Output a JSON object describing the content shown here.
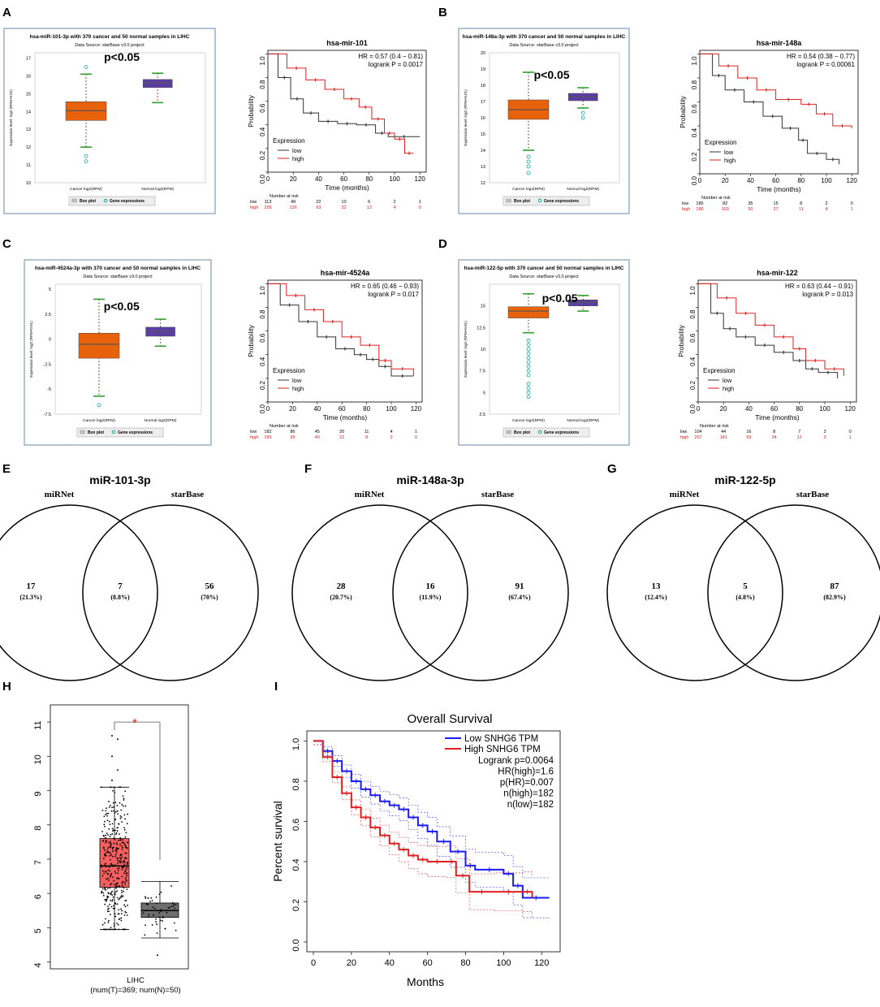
{
  "panel_labels": [
    "A",
    "B",
    "C",
    "D",
    "E",
    "F",
    "G",
    "H",
    "I"
  ],
  "colors": {
    "cancer_box": "#e8620c",
    "normal_box": "#5a3da6",
    "frame": "#9bb0c8",
    "km_low": "#333333",
    "km_high": "#dd2222",
    "venn": "#000000",
    "gepia_tumor": "#f45f5f",
    "gepia_normal": "#6e6e6e",
    "gepia_star": "#e31a1c",
    "os_low": "#1a1aff",
    "os_high": "#e02020",
    "legend_box": "#bdbdbd",
    "gene_expr": "#1aa3a3",
    "whisker": "#2e9e2e"
  },
  "chart_data": [
    {
      "panel": "A",
      "type": "box",
      "title": "hsa-miR-101-3p with 370 cancer and 50 normal samples in LIHC",
      "subtitle": "Data Source: starBase v3.0 project",
      "ylabel": "Expression level: log2 (RPM+0.01)",
      "yticks": [
        10,
        11,
        12,
        13,
        14,
        15,
        16,
        17
      ],
      "ylim": [
        10,
        17.3
      ],
      "categories": [
        "Cancer log2(RPM)",
        "Normal log2(RPM)"
      ],
      "cancer": {
        "wlo": 12.0,
        "q1": 13.5,
        "med": 14.05,
        "q3": 14.55,
        "whi": 16.1,
        "outliers": [
          11.2,
          11.5,
          16.5
        ]
      },
      "normal": {
        "wlo": 14.5,
        "q1": 15.35,
        "med": 15.6,
        "q3": 15.8,
        "whi": 16.15,
        "outliers": []
      },
      "annotation": "p<0.05",
      "legend": [
        "Box plot",
        "Gene expressions"
      ]
    },
    {
      "panel": "A",
      "type": "km",
      "title": "hsa-mir-101",
      "hr": "HR = 0.57 (0.4 − 0.81)",
      "logrank": "logrank P = 0.0017",
      "xlabel": "Time (months)",
      "ylabel": "Probability",
      "xticks": [
        0,
        20,
        40,
        60,
        80,
        100,
        120
      ],
      "yticks": [
        0.0,
        0.2,
        0.4,
        0.6,
        0.8,
        1.0
      ],
      "xlim": [
        0,
        125
      ],
      "legend_title": "Expression",
      "legend": [
        "low",
        "high"
      ],
      "risk_title": "Number at risk",
      "risk": {
        "low": [
          "113",
          "49",
          "22",
          "10",
          "6",
          "2",
          "1"
        ],
        "high": [
          "258",
          "136",
          "63",
          "32",
          "13",
          "4",
          "0"
        ]
      },
      "low": [
        [
          0,
          1.0
        ],
        [
          8,
          0.8
        ],
        [
          18,
          0.62
        ],
        [
          28,
          0.5
        ],
        [
          40,
          0.43
        ],
        [
          55,
          0.41
        ],
        [
          70,
          0.4
        ],
        [
          85,
          0.33
        ],
        [
          95,
          0.3
        ],
        [
          120,
          0.3
        ]
      ],
      "high": [
        [
          0,
          1.0
        ],
        [
          15,
          0.88
        ],
        [
          30,
          0.78
        ],
        [
          45,
          0.7
        ],
        [
          60,
          0.62
        ],
        [
          72,
          0.55
        ],
        [
          82,
          0.45
        ],
        [
          92,
          0.33
        ],
        [
          100,
          0.28
        ],
        [
          108,
          0.16
        ],
        [
          115,
          0.16
        ]
      ]
    },
    {
      "panel": "B",
      "type": "box",
      "title": "hsa-miR-148a-3p with 370 cancer and 50 normal samples in LIHC",
      "subtitle": "Data Source: starBase v3.0 project",
      "ylabel": "Expression level: log2 (RPM+0.01)",
      "yticks": [
        12,
        13,
        14,
        15,
        16,
        17,
        18,
        19,
        20
      ],
      "ylim": [
        12,
        20
      ],
      "categories": [
        "Cancer log2(RPM)",
        "Normal log2(RPM)"
      ],
      "cancer": {
        "wlo": 14.0,
        "q1": 15.9,
        "med": 16.5,
        "q3": 17.1,
        "whi": 18.8,
        "outliers": [
          12.6,
          13.0,
          13.3,
          13.6
        ]
      },
      "normal": {
        "wlo": 16.6,
        "q1": 17.05,
        "med": 17.3,
        "q3": 17.5,
        "whi": 17.85,
        "outliers": [
          16.0,
          16.3
        ]
      },
      "annotation": "p<0.05",
      "legend": [
        "Box plot",
        "Gene expressions"
      ]
    },
    {
      "panel": "B",
      "type": "km",
      "title": "hsa-mir-148a",
      "hr": "HR = 0.54 (0.38 − 0.77)",
      "logrank": "logrank P = 0.00061",
      "xlabel": "Time (months)",
      "ylabel": "Probability",
      "xticks": [
        0,
        20,
        40,
        60,
        80,
        100,
        120
      ],
      "yticks": [
        0.0,
        0.2,
        0.4,
        0.6,
        0.8,
        1.0
      ],
      "xlim": [
        0,
        125
      ],
      "legend_title": "Expression",
      "legend": [
        "low",
        "high"
      ],
      "risk_title": "Number at risk",
      "risk": {
        "low": [
          "185",
          "82",
          "35",
          "15",
          "8",
          "2",
          "0"
        ],
        "high": [
          "186",
          "103",
          "50",
          "27",
          "11",
          "4",
          "1"
        ]
      },
      "low": [
        [
          0,
          1.0
        ],
        [
          10,
          0.82
        ],
        [
          20,
          0.7
        ],
        [
          35,
          0.6
        ],
        [
          50,
          0.48
        ],
        [
          65,
          0.38
        ],
        [
          78,
          0.28
        ],
        [
          85,
          0.17
        ],
        [
          100,
          0.12
        ],
        [
          110,
          0.08
        ]
      ],
      "high": [
        [
          0,
          1.0
        ],
        [
          15,
          0.9
        ],
        [
          30,
          0.8
        ],
        [
          45,
          0.7
        ],
        [
          60,
          0.62
        ],
        [
          80,
          0.58
        ],
        [
          92,
          0.5
        ],
        [
          105,
          0.4
        ],
        [
          120,
          0.38
        ]
      ]
    },
    {
      "panel": "C",
      "type": "box",
      "title": "hsa-miR-4524a-3p with 370 cancer and 50 normal samples in LIHC",
      "subtitle": "Data Source: starBase v3.0 project",
      "ylabel": "Expression level: log2 (RPM+0.01)",
      "yticks": [
        -7.5,
        -5,
        -2.5,
        0,
        2.5,
        5
      ],
      "ylim": [
        -7.5,
        5.5
      ],
      "categories": [
        "Cancer log2(RPM)",
        "Normal log2(RPM)"
      ],
      "cancer": {
        "wlo": -5.7,
        "q1": -1.9,
        "med": -0.5,
        "q3": 0.6,
        "whi": 4.0,
        "outliers": [
          -6.6
        ]
      },
      "normal": {
        "wlo": -0.7,
        "q1": 0.3,
        "med": 0.8,
        "q3": 1.2,
        "whi": 2.0,
        "outliers": []
      },
      "annotation": "p<0.05",
      "legend": [
        "Box plot",
        "Gene expressions"
      ]
    },
    {
      "panel": "C",
      "type": "km",
      "title": "hsa-mir-4524a",
      "hr": "HR = 0.65 (0.46 − 0.93)",
      "logrank": "logrank P = 0.017",
      "xlabel": "Time (months)",
      "ylabel": "Probability",
      "xticks": [
        0,
        20,
        40,
        60,
        80,
        100,
        120
      ],
      "yticks": [
        0.0,
        0.2,
        0.4,
        0.6,
        0.8,
        1.0
      ],
      "xlim": [
        0,
        125
      ],
      "legend_title": "Expression",
      "legend": [
        "low",
        "high"
      ],
      "risk_title": "Number at risk",
      "risk": {
        "low": [
          "182",
          "86",
          "45",
          "20",
          "11",
          "4",
          "1"
        ],
        "high": [
          "189",
          "99",
          "40",
          "22",
          "8",
          "2",
          "0"
        ]
      },
      "low": [
        [
          0,
          1.0
        ],
        [
          10,
          0.82
        ],
        [
          25,
          0.68
        ],
        [
          40,
          0.55
        ],
        [
          55,
          0.45
        ],
        [
          70,
          0.4
        ],
        [
          80,
          0.36
        ],
        [
          90,
          0.3
        ],
        [
          100,
          0.22
        ],
        [
          118,
          0.22
        ]
      ],
      "high": [
        [
          0,
          1.0
        ],
        [
          15,
          0.9
        ],
        [
          30,
          0.78
        ],
        [
          45,
          0.68
        ],
        [
          60,
          0.55
        ],
        [
          75,
          0.48
        ],
        [
          90,
          0.35
        ],
        [
          100,
          0.28
        ],
        [
          118,
          0.22
        ]
      ]
    },
    {
      "panel": "D",
      "type": "box",
      "title": "hsa-miR-122-5p with 370 cancer and 50 normal samples in LIHC",
      "subtitle": "Data Source: starBase v3.0 project",
      "ylabel": "Expression level: log2 (RPM+0.01)",
      "yticks": [
        2.5,
        5,
        7.5,
        10,
        12.5,
        15
      ],
      "ylim": [
        2.5,
        17.5
      ],
      "categories": [
        "Cancer log2(RPM)",
        "Normal log2(RPM)"
      ],
      "cancer": {
        "wlo": 11.9,
        "q1": 13.6,
        "med": 14.4,
        "q3": 14.9,
        "whi": 16.4,
        "outliers": [
          4.5,
          5.0,
          5.5,
          6.0,
          7.0,
          7.5,
          8.0,
          8.5,
          9.0,
          9.5,
          10.0,
          10.5,
          11.0
        ]
      },
      "normal": {
        "wlo": 14.4,
        "q1": 15.0,
        "med": 15.4,
        "q3": 15.7,
        "whi": 16.2,
        "outliers": []
      },
      "annotation": "p<0.05",
      "legend": [
        "Box plot",
        "Gene expressions"
      ]
    },
    {
      "panel": "D",
      "type": "km",
      "title": "hsa-mir-122",
      "hr": "HR = 0.63 (0.44 − 0.91)",
      "logrank": "logrank P = 0.013",
      "xlabel": "Time (months)",
      "ylabel": "Probability",
      "xticks": [
        0,
        20,
        40,
        60,
        80,
        100,
        120
      ],
      "yticks": [
        0.0,
        0.2,
        0.4,
        0.6,
        0.8,
        1.0
      ],
      "xlim": [
        0,
        125
      ],
      "legend_title": "Expression",
      "legend": [
        "low",
        "high"
      ],
      "risk_title": "Number at risk",
      "risk": {
        "low": [
          "104",
          "44",
          "16",
          "8",
          "7",
          "3",
          "0"
        ],
        "high": [
          "267",
          "141",
          "69",
          "34",
          "12",
          "3",
          "1"
        ]
      },
      "low": [
        [
          0,
          1.0
        ],
        [
          10,
          0.75
        ],
        [
          20,
          0.62
        ],
        [
          30,
          0.55
        ],
        [
          45,
          0.48
        ],
        [
          60,
          0.42
        ],
        [
          75,
          0.35
        ],
        [
          85,
          0.28
        ],
        [
          95,
          0.25
        ],
        [
          110,
          0.2
        ]
      ],
      "high": [
        [
          0,
          1.0
        ],
        [
          15,
          0.88
        ],
        [
          30,
          0.75
        ],
        [
          45,
          0.65
        ],
        [
          60,
          0.55
        ],
        [
          75,
          0.45
        ],
        [
          85,
          0.35
        ],
        [
          100,
          0.28
        ],
        [
          115,
          0.22
        ]
      ]
    },
    {
      "panel": "E",
      "type": "venn",
      "title": "miR-101-3p",
      "left_label": "miRNet",
      "right_label": "starBase",
      "left": "17",
      "left_pct": "(21.3%)",
      "mid": "7",
      "mid_pct": "(8.8%)",
      "right": "56",
      "right_pct": "(70%)"
    },
    {
      "panel": "F",
      "type": "venn",
      "title": "miR-148a-3p",
      "left_label": "miRNet",
      "right_label": "starBase",
      "left": "28",
      "left_pct": "(20.7%)",
      "mid": "16",
      "mid_pct": "(11.9%)",
      "right": "91",
      "right_pct": "(67.4%)"
    },
    {
      "panel": "G",
      "type": "venn",
      "title": "miR-122-5p",
      "left_label": "miRNet",
      "right_label": "starBase",
      "left": "13",
      "left_pct": "(12.4%)",
      "mid": "5",
      "mid_pct": "(4.8%)",
      "right": "87",
      "right_pct": "(82.9%)"
    },
    {
      "panel": "H",
      "type": "box",
      "title": "",
      "yticks": [
        4,
        5,
        6,
        7,
        8,
        9,
        10,
        11
      ],
      "ylim": [
        3.8,
        11.5
      ],
      "xlabel": "LIHC",
      "xlabel2": "(num(T)=369; num(N)=50)",
      "significance": "*",
      "tumor": {
        "wlo": 4.95,
        "q1": 6.18,
        "med": 6.8,
        "q3": 7.6,
        "whi": 9.1,
        "outliers": [
          9.3,
          9.6,
          10.0,
          10.5,
          10.6
        ]
      },
      "normal": {
        "wlo": 4.7,
        "q1": 5.3,
        "med": 5.5,
        "q3": 5.72,
        "whi": 6.35,
        "outliers": [
          4.2
        ]
      }
    },
    {
      "panel": "I",
      "type": "km",
      "title": "Overall Survival",
      "xlabel": "Months",
      "ylabel": "Percent survival",
      "xticks": [
        0,
        20,
        40,
        60,
        80,
        100,
        120
      ],
      "yticks": [
        0.0,
        0.2,
        0.4,
        0.6,
        0.8,
        1.0
      ],
      "xlim": [
        0,
        128
      ],
      "ylim": [
        0,
        1.03
      ],
      "legend": [
        "Low SNHG6 TPM",
        "High SNHG6 TPM"
      ],
      "stats": [
        "Logrank p=0.0064",
        "HR(high)=1.6",
        "p(HR)=0.007",
        "n(high)=182",
        "n(low)=182"
      ],
      "low": [
        [
          0,
          1.0
        ],
        [
          5,
          0.95
        ],
        [
          10,
          0.9
        ],
        [
          15,
          0.85
        ],
        [
          20,
          0.8
        ],
        [
          25,
          0.76
        ],
        [
          30,
          0.73
        ],
        [
          35,
          0.7
        ],
        [
          40,
          0.68
        ],
        [
          45,
          0.66
        ],
        [
          50,
          0.62
        ],
        [
          55,
          0.58
        ],
        [
          60,
          0.55
        ],
        [
          65,
          0.5
        ],
        [
          72,
          0.45
        ],
        [
          80,
          0.38
        ],
        [
          85,
          0.36
        ],
        [
          100,
          0.34
        ],
        [
          105,
          0.28
        ],
        [
          110,
          0.22
        ],
        [
          124,
          0.22
        ]
      ],
      "high": [
        [
          0,
          1.0
        ],
        [
          5,
          0.92
        ],
        [
          10,
          0.82
        ],
        [
          15,
          0.74
        ],
        [
          20,
          0.67
        ],
        [
          25,
          0.62
        ],
        [
          30,
          0.57
        ],
        [
          35,
          0.53
        ],
        [
          40,
          0.49
        ],
        [
          45,
          0.46
        ],
        [
          50,
          0.43
        ],
        [
          55,
          0.41
        ],
        [
          60,
          0.4
        ],
        [
          70,
          0.4
        ],
        [
          75,
          0.33
        ],
        [
          82,
          0.25
        ],
        [
          95,
          0.25
        ],
        [
          110,
          0.25
        ],
        [
          115,
          0.22
        ]
      ]
    }
  ]
}
